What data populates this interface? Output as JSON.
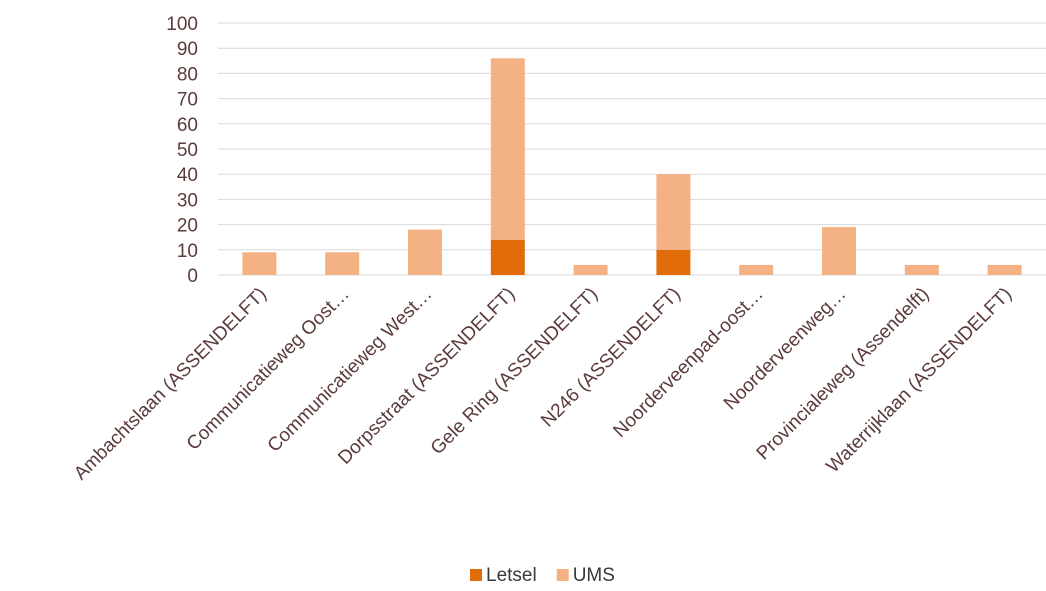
{
  "chart_data": {
    "type": "bar",
    "stacked": true,
    "categories": [
      "Ambachtslaan (ASSENDELFT)",
      "Communicatieweg Oost…",
      "Communicatieweg West…",
      "Dorpsstraat (ASSENDELFT)",
      "Gele Ring (ASSENDELFT)",
      "N246 (ASSENDELFT)",
      "Noorderveenpad-oost…",
      "Noorderveenweg…",
      "Provincialeweg (Assendelft)",
      "Waterrijklaan (ASSENDELFT)"
    ],
    "series": [
      {
        "name": "Letsel",
        "color": "#e36c0a",
        "values": [
          0,
          0,
          0,
          14,
          0,
          10,
          0,
          0,
          0,
          0
        ]
      },
      {
        "name": "UMS",
        "color": "#f4b183",
        "values": [
          9,
          9,
          18,
          72,
          4,
          30,
          4,
          19,
          4,
          4
        ]
      }
    ],
    "ylim": [
      0,
      100
    ],
    "yticks": [
      "0",
      "10",
      "20",
      "30",
      "40",
      "50",
      "60",
      "70",
      "80",
      "90",
      "100"
    ],
    "grid": true,
    "legend": "bottom"
  }
}
